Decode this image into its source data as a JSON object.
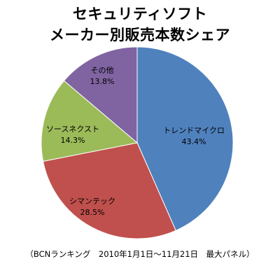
{
  "chart_data": {
    "type": "pie",
    "title": "セキュリティソフト\nメーカー別販売本数シェア",
    "title_lines": [
      "セキュリティソフト",
      "メーカー別販売本数シェア"
    ],
    "slices": [
      {
        "label": "トレンドマイクロ",
        "value": 43.4,
        "value_label": "43.4%",
        "color": "#4F81BD"
      },
      {
        "label": "シマンテック",
        "value": 28.5,
        "value_label": "28.5%",
        "color": "#C0504D"
      },
      {
        "label": "ソースネクスト",
        "value": 14.3,
        "value_label": "14.3%",
        "color": "#9BBB59"
      },
      {
        "label": "その他",
        "value": 13.8,
        "value_label": "13.8%",
        "color": "#8064A2"
      }
    ],
    "start": "12 o'clock",
    "direction": "clockwise",
    "legend": "none"
  },
  "footnote": "（BCNランキング　2010年1月1日～11月21日　最大パネル）"
}
